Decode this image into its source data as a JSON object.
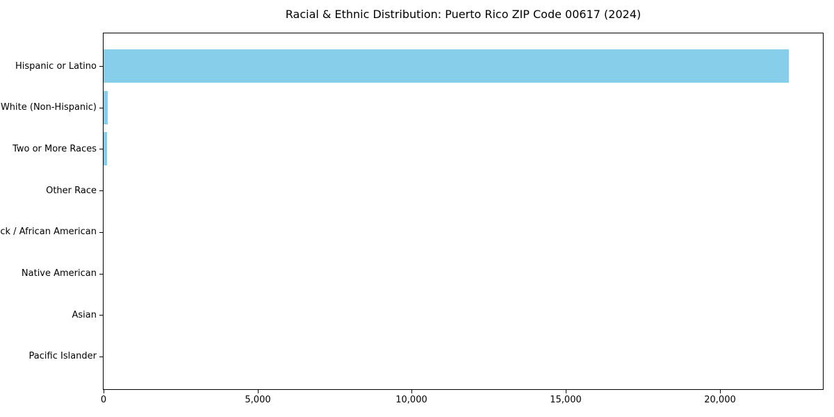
{
  "chart_data": {
    "type": "bar",
    "orientation": "horizontal",
    "title": "Racial & Ethnic Distribution: Puerto Rico ZIP Code 00617 (2024)",
    "categories": [
      "Hispanic or Latino",
      "White (Non-Hispanic)",
      "Two or More Races",
      "Other Race",
      "Black / African American",
      "Native American",
      "Asian",
      "Pacific Islander"
    ],
    "values": [
      22230,
      140,
      105,
      0,
      0,
      0,
      0,
      0
    ],
    "xlabel": "",
    "ylabel": "",
    "xlim": [
      0,
      23340
    ],
    "xticks": [
      0,
      5000,
      10000,
      15000,
      20000
    ],
    "xtick_labels": [
      "0",
      "5,000",
      "10,000",
      "15,000",
      "20,000"
    ],
    "bar_color": "#87CEEB",
    "axis_color": "#000000",
    "text_color": "#000000",
    "grid": false,
    "legend": null
  }
}
